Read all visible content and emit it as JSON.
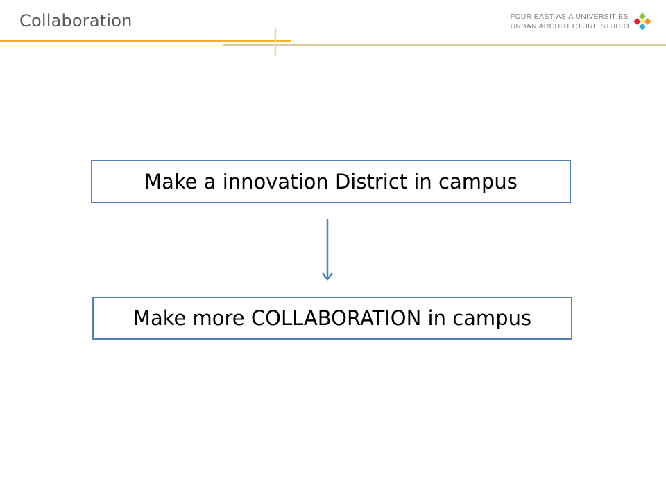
{
  "slide": {
    "title": "Collaboration"
  },
  "header": {
    "brand_line1": "FOUR EAST-ASIA  UNIVERSITIES",
    "brand_line2": "URBAN ARCHITECTURE STUDIO",
    "logo_icon": "four-color-diamond-logo-icon"
  },
  "flow": {
    "box1_text": "Make a innovation District in campus",
    "box2_text": "Make more COLLABORATION in campus",
    "arrow_icon": "arrow-down-icon"
  },
  "colors": {
    "accent_gold": "#f0b41e",
    "rule_tan": "#d8c9a8",
    "box_border": "#4f81bd",
    "title_text": "#595959",
    "brand_text": "#7f7f7f"
  }
}
